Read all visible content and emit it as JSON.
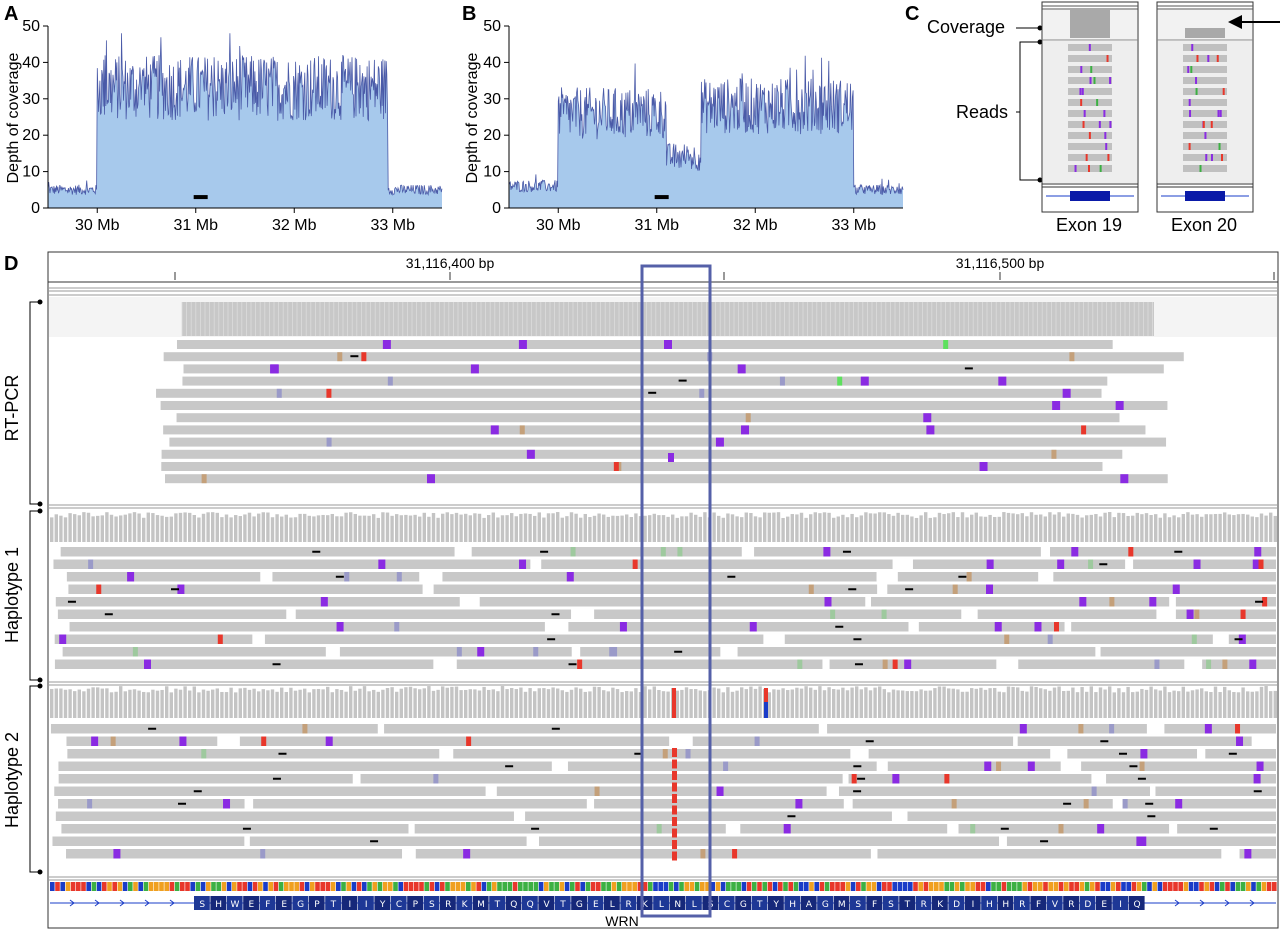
{
  "figure": {
    "panels": {
      "A": {
        "letter": "A"
      },
      "B": {
        "letter": "B"
      },
      "C": {
        "letter": "C"
      },
      "D": {
        "letter": "D"
      }
    }
  },
  "chart_data": [
    {
      "type": "area",
      "panel": "A",
      "ylabel": "Depth of coverage",
      "xlabel": "",
      "yticks": [
        0,
        10,
        20,
        30,
        40,
        50
      ],
      "ylim": [
        0,
        50
      ],
      "xticks": [
        "30 Mb",
        "31 Mb",
        "32 Mb",
        "33 Mb"
      ],
      "xtick_values": [
        30,
        31,
        32,
        33
      ],
      "xlim": [
        29.5,
        33.5
      ],
      "segments": [
        {
          "start": 29.5,
          "end": 30.0,
          "mean": 5
        },
        {
          "start": 30.0,
          "end": 32.95,
          "mean": 33
        },
        {
          "start": 32.95,
          "end": 33.5,
          "mean": 5
        }
      ],
      "marker_position": 31.05,
      "color_fill": "#a7c9ec",
      "color_line": "#4a5aa8"
    },
    {
      "type": "area",
      "panel": "B",
      "ylabel": "Depth of coverage",
      "xlabel": "",
      "yticks": [
        0,
        10,
        20,
        30,
        40,
        50
      ],
      "ylim": [
        0,
        50
      ],
      "xticks": [
        "30 Mb",
        "31 Mb",
        "32 Mb",
        "33 Mb"
      ],
      "xtick_values": [
        30,
        31,
        32,
        33
      ],
      "xlim": [
        29.5,
        33.5
      ],
      "segments": [
        {
          "start": 29.5,
          "end": 30.0,
          "mean": 6
        },
        {
          "start": 30.0,
          "end": 31.1,
          "mean": 26
        },
        {
          "start": 31.1,
          "end": 31.45,
          "mean": 14
        },
        {
          "start": 31.45,
          "end": 33.0,
          "mean": 28
        },
        {
          "start": 33.0,
          "end": 33.5,
          "mean": 5
        }
      ],
      "marker_position": 31.05,
      "color_fill": "#a7c9ec",
      "color_line": "#4a5aa8"
    }
  ],
  "panel_c": {
    "coverage_label": "Coverage",
    "reads_label": "Reads",
    "exons": [
      {
        "label": "Exon 19"
      },
      {
        "label": "Exon 20"
      }
    ]
  },
  "panel_d": {
    "ruler": {
      "labels": [
        "31,116,400 bp",
        "31,116,500 bp"
      ]
    },
    "groups": [
      {
        "label": "RT-PCR"
      },
      {
        "label": "Haplotype 1"
      },
      {
        "label": "Haplotype 2"
      }
    ],
    "amino_acids": [
      "S",
      "H",
      "W",
      "E",
      "F",
      "E",
      "G",
      "P",
      "T",
      "I",
      "I",
      "Y",
      "C",
      "P",
      "S",
      "R",
      "K",
      "M",
      "T",
      "Q",
      "Q",
      "V",
      "T",
      "G",
      "E",
      "L",
      "R",
      "K",
      "L",
      "N",
      "L",
      "S",
      "C",
      "G",
      "T",
      "Y",
      "H",
      "A",
      "G",
      "M",
      "S",
      "F",
      "S",
      "T",
      "R",
      "K",
      "D",
      "I",
      "H",
      "H",
      "R",
      "F",
      "V",
      "R",
      "D",
      "E",
      "I",
      "Q"
    ],
    "gene": "WRN",
    "highlight_color": "#5560a8",
    "read_color": "#c8c8c8",
    "insertion_color": "#8a2be2",
    "mismatch_color": "#e8372b"
  }
}
